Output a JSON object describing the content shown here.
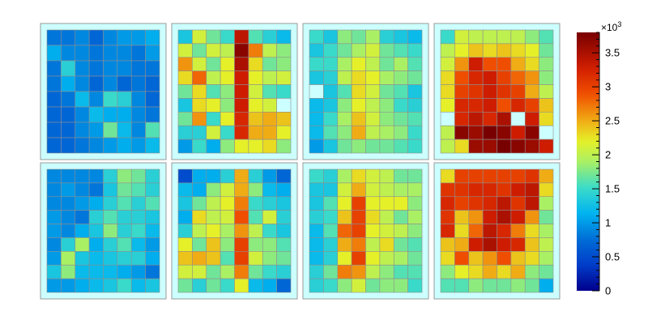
{
  "chart_data": {
    "type": "heatmap",
    "z_scale": {
      "min": 0,
      "max": 3800,
      "multiplier_label": "×10",
      "multiplier_exponent": "3"
    },
    "colorbar_ticks": [
      {
        "value": 0,
        "label": "0"
      },
      {
        "value": 500,
        "label": "0.5"
      },
      {
        "value": 1000,
        "label": "1"
      },
      {
        "value": 1500,
        "label": "1.5"
      },
      {
        "value": 2000,
        "label": "2"
      },
      {
        "value": 2500,
        "label": "2.5"
      },
      {
        "value": 3000,
        "label": "3"
      },
      {
        "value": 3500,
        "label": "3.5"
      }
    ],
    "empty_cell_color": "#ccffff",
    "panels": [
      {
        "name": "panel-1",
        "grid": [
          [
            800,
            800,
            900,
            700,
            900,
            1000,
            1000,
            1100
          ],
          [
            1100,
            900,
            900,
            800,
            900,
            900,
            800,
            1000
          ],
          [
            800,
            1400,
            900,
            800,
            900,
            900,
            800,
            800
          ],
          [
            800,
            1100,
            900,
            700,
            900,
            700,
            800,
            700
          ],
          [
            700,
            800,
            1200,
            900,
            1500,
            1400,
            900,
            700
          ],
          [
            700,
            700,
            900,
            1200,
            1100,
            1100,
            900,
            800
          ],
          [
            700,
            700,
            900,
            1000,
            1700,
            1200,
            900,
            1600
          ],
          [
            700,
            700,
            800,
            900,
            1000,
            1100,
            1000,
            1200
          ]
        ]
      },
      {
        "name": "panel-2",
        "grid": [
          [
            1300,
            2100,
            1700,
            1500,
            3400,
            1600,
            1400,
            1200
          ],
          [
            2100,
            1700,
            2100,
            2000,
            3700,
            2700,
            2000,
            1800
          ],
          [
            2600,
            2100,
            1700,
            2200,
            3500,
            2300,
            1700,
            1800
          ],
          [
            2300,
            2800,
            2000,
            2200,
            3300,
            2200,
            2000,
            2100
          ],
          [
            1700,
            2300,
            1600,
            1800,
            3300,
            2100,
            1600,
            1500
          ],
          [
            1300,
            2300,
            2200,
            1800,
            3300,
            2200,
            2100,
            null
          ],
          [
            1700,
            2600,
            1500,
            2200,
            3200,
            2400,
            2500,
            2400
          ],
          [
            1400,
            1400,
            2100,
            1500,
            3200,
            2500,
            2500,
            2200
          ],
          [
            1000,
            1500,
            1100,
            1800,
            2200,
            2200,
            2300,
            1800
          ]
        ]
      },
      {
        "name": "panel-3",
        "grid": [
          [
            1500,
            1300,
            1800,
            1700,
            1900,
            1400,
            1300,
            1200
          ],
          [
            1300,
            1500,
            1700,
            1900,
            2100,
            1700,
            1600,
            1500
          ],
          [
            1500,
            1500,
            1900,
            2200,
            2000,
            1700,
            1900,
            1600
          ],
          [
            1300,
            1400,
            2000,
            2300,
            2200,
            1900,
            1800,
            1700
          ],
          [
            null,
            1300,
            1600,
            2300,
            2100,
            1700,
            1600,
            1300
          ],
          [
            1200,
            1300,
            1800,
            2200,
            2000,
            1800,
            1500,
            1400
          ],
          [
            1200,
            1500,
            1900,
            2400,
            2100,
            1800,
            1700,
            1600
          ],
          [
            1200,
            1600,
            1800,
            2500,
            2000,
            1900,
            1800,
            1500
          ],
          [
            1000,
            1300,
            1700,
            1800,
            1700,
            1700,
            1600,
            1500
          ]
        ]
      },
      {
        "name": "panel-4",
        "grid": [
          [
            1500,
            2100,
            2000,
            2000,
            2000,
            2000,
            1800,
            1600
          ],
          [
            2000,
            2200,
            2400,
            2300,
            2400,
            2300,
            2200,
            1700
          ],
          [
            2100,
            2600,
            3300,
            2900,
            2900,
            2500,
            2300,
            1800
          ],
          [
            2300,
            2900,
            3200,
            3300,
            3000,
            2800,
            2600,
            1800
          ],
          [
            2300,
            3000,
            3100,
            3300,
            3100,
            3000,
            2500,
            2000
          ],
          [
            2200,
            3200,
            3200,
            3300,
            2900,
            3200,
            3000,
            2400
          ],
          [
            null,
            3200,
            3400,
            3200,
            3500,
            null,
            3300,
            2300
          ],
          [
            2000,
            3700,
            3600,
            3800,
            3700,
            3300,
            3700,
            null
          ],
          [
            2000,
            2300,
            3600,
            3600,
            3800,
            3700,
            3600,
            3300
          ]
        ]
      },
      {
        "name": "panel-5",
        "grid": [
          [
            900,
            900,
            900,
            900,
            1400,
            1800,
            1700,
            1400
          ],
          [
            900,
            1000,
            900,
            800,
            1300,
            1700,
            1600,
            1400
          ],
          [
            900,
            900,
            1000,
            1100,
            1400,
            1600,
            1400,
            1600
          ],
          [
            1000,
            900,
            800,
            1400,
            1600,
            1400,
            1400,
            1300
          ],
          [
            1000,
            900,
            1100,
            1300,
            1800,
            1400,
            1500,
            1200
          ],
          [
            900,
            1400,
            1900,
            1100,
            1400,
            1600,
            1200,
            1000
          ],
          [
            1000,
            1900,
            1300,
            1200,
            1300,
            1400,
            1400,
            1100
          ],
          [
            1300,
            1800,
            1200,
            1200,
            1200,
            1100,
            1000,
            800
          ],
          [
            1000,
            1000,
            1100,
            1200,
            1300,
            1500,
            1200,
            1300
          ]
        ]
      },
      {
        "name": "panel-6",
        "grid": [
          [
            500,
            1100,
            1100,
            1400,
            2500,
            1400,
            1000,
            700
          ],
          [
            1200,
            1100,
            1800,
            2100,
            2500,
            1800,
            1200,
            1100
          ],
          [
            1300,
            1700,
            2000,
            2200,
            2700,
            1500,
            1400,
            1300
          ],
          [
            1100,
            2300,
            2000,
            2100,
            2900,
            1600,
            2100,
            1400
          ],
          [
            1400,
            2000,
            2200,
            1900,
            2600,
            2000,
            1500,
            1300
          ],
          [
            2200,
            1700,
            2400,
            1800,
            3000,
            1800,
            1800,
            1600
          ],
          [
            2400,
            2500,
            2400,
            1600,
            3000,
            2100,
            1800,
            1700
          ],
          [
            2100,
            2100,
            1700,
            1900,
            2700,
            1700,
            1500,
            1400
          ],
          [
            1700,
            1400,
            1700,
            1500,
            2200,
            1200,
            1100,
            700
          ]
        ]
      },
      {
        "name": "panel-7",
        "grid": [
          [
            1500,
            1400,
            1900,
            2300,
            2100,
            2000,
            1700,
            1700
          ],
          [
            1300,
            1300,
            2100,
            2500,
            2100,
            2000,
            1900,
            1900
          ],
          [
            1300,
            1600,
            2200,
            3000,
            2200,
            2200,
            2200,
            1800
          ],
          [
            1400,
            1500,
            2400,
            3000,
            2300,
            2000,
            1700,
            1900
          ],
          [
            1200,
            1600,
            2800,
            3000,
            2200,
            2100,
            2000,
            1800
          ],
          [
            1200,
            1400,
            2500,
            2700,
            2000,
            2300,
            1700,
            1600
          ],
          [
            1200,
            1400,
            2200,
            3000,
            2200,
            2000,
            1900,
            1700
          ],
          [
            1400,
            1700,
            2700,
            2600,
            2000,
            1800,
            1600,
            1600
          ],
          [
            1400,
            1500,
            1800,
            2100,
            1700,
            1800,
            1800,
            1500
          ]
        ]
      },
      {
        "name": "panel-8",
        "grid": [
          [
            2300,
            3000,
            3000,
            3000,
            3000,
            3000,
            3100,
            2500
          ],
          [
            3100,
            3100,
            3200,
            3200,
            3100,
            3300,
            3400,
            2300
          ],
          [
            3200,
            3000,
            3100,
            3200,
            3400,
            3100,
            3400,
            1900
          ],
          [
            3100,
            2400,
            2600,
            3300,
            3500,
            3300,
            2600,
            1700
          ],
          [
            3200,
            2300,
            2800,
            3400,
            3200,
            2700,
            2300,
            1900
          ],
          [
            2400,
            2500,
            3300,
            3500,
            3300,
            3200,
            2400,
            2000
          ],
          [
            2300,
            2900,
            2400,
            2600,
            2900,
            2400,
            2300,
            1900
          ],
          [
            1800,
            2200,
            2300,
            2500,
            2300,
            2500,
            1800,
            1700
          ],
          [
            1600,
            1600,
            1800,
            1700,
            1700,
            1800,
            1700,
            1100
          ]
        ]
      }
    ]
  }
}
